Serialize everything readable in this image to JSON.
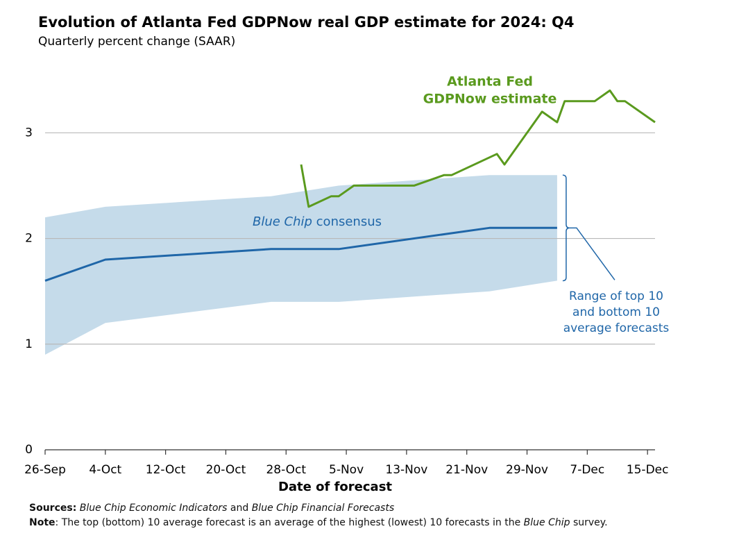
{
  "chart_data": {
    "type": "line",
    "title": "Evolution of Atlanta Fed GDPNow real GDP estimate for 2024: Q4",
    "subtitle": "Quarterly percent change (SAAR)",
    "x_label": "Date of forecast",
    "xlim": [
      "26-Sep",
      "16-Dec"
    ],
    "xticks": [
      "26-Sep",
      "4-Oct",
      "12-Oct",
      "20-Oct",
      "28-Oct",
      "5-Nov",
      "13-Nov",
      "21-Nov",
      "29-Nov",
      "7-Dec",
      "15-Dec"
    ],
    "ylim": [
      0,
      3.6
    ],
    "yticks": [
      0,
      1,
      2,
      3
    ],
    "grid": true,
    "series": [
      {
        "label_parts": [
          "Blue Chip",
          " consensus"
        ],
        "color": "#1f66a8",
        "band_color": "#c5dbea",
        "x": [
          "26-Sep",
          "4-Oct",
          "26-Oct",
          "4-Nov",
          "24-Nov",
          "3-Dec"
        ],
        "values": [
          1.6,
          1.8,
          1.9,
          1.9,
          2.1,
          2.1
        ],
        "low": [
          0.9,
          1.2,
          1.4,
          1.4,
          1.5,
          1.6
        ],
        "high": [
          2.2,
          2.3,
          2.4,
          2.5,
          2.6,
          2.6
        ],
        "range_label": [
          "Range of top 10",
          "and bottom 10",
          "average forecasts"
        ]
      },
      {
        "label_parts": [
          "Atlanta Fed",
          "GDPNow estimate"
        ],
        "color": "#5a9a1e",
        "x": [
          "30-Oct",
          "31-Oct",
          "3-Nov",
          "4-Nov",
          "6-Nov",
          "14-Nov",
          "18-Nov",
          "19-Nov",
          "25-Nov",
          "26-Nov",
          "1-Dec",
          "3-Dec",
          "4-Dec",
          "8-Dec",
          "10-Dec",
          "11-Dec",
          "12-Dec",
          "16-Dec"
        ],
        "values": [
          2.7,
          2.3,
          2.4,
          2.4,
          2.5,
          2.5,
          2.6,
          2.6,
          2.8,
          2.7,
          3.2,
          3.1,
          3.3,
          3.3,
          3.4,
          3.3,
          3.3,
          3.1
        ]
      }
    ],
    "notes": {
      "sources": [
        "Sources:",
        "Blue Chip Economic Indicators",
        " and ",
        "Blue Chip Financial Forecasts"
      ],
      "note": [
        "Note",
        ": The top (bottom) 10 average forecast is an average of the highest (lowest) 10 forecasts in the ",
        "Blue Chip",
        " survey."
      ]
    }
  }
}
